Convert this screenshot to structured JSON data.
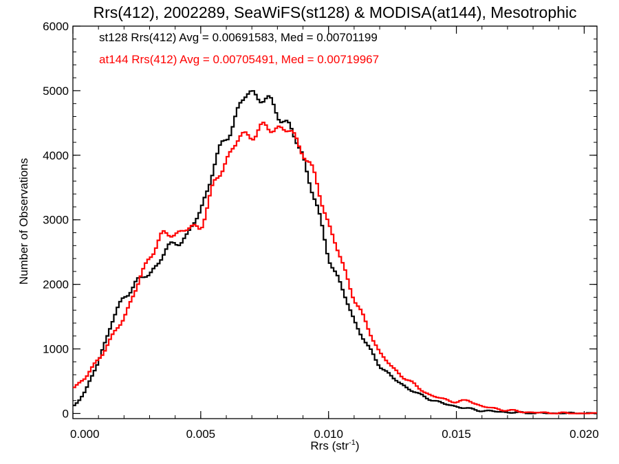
{
  "chart_data": {
    "type": "line",
    "style": "step histogram",
    "title": "Rrs(412), 2002289, SeaWiFS(st128) & MODISA(at144), Mesotrophic",
    "xlabel": "Rrs (str",
    "xlabel_superscript": "-1",
    "xlabel_suffix": ")",
    "ylabel": "Number of Observations",
    "xlim": [
      0.0,
      0.0205
    ],
    "ylim": [
      -80,
      6000
    ],
    "x_ticks": [
      {
        "value": 0.0,
        "label": "0.000"
      },
      {
        "value": 0.005,
        "label": "0.005"
      },
      {
        "value": 0.01,
        "label": "0.010"
      },
      {
        "value": 0.015,
        "label": "0.015"
      },
      {
        "value": 0.02,
        "label": "0.020"
      }
    ],
    "y_ticks": [
      {
        "value": 0,
        "label": "0"
      },
      {
        "value": 1000,
        "label": "1000"
      },
      {
        "value": 2000,
        "label": "2000"
      },
      {
        "value": 3000,
        "label": "3000"
      },
      {
        "value": 4000,
        "label": "4000"
      },
      {
        "value": 5000,
        "label": "5000"
      },
      {
        "value": 6000,
        "label": "6000"
      }
    ],
    "x_minor_step": 0.001,
    "y_minor_step": 200,
    "grid": false,
    "legend_position": "top-left",
    "series": [
      {
        "legend": "st128 Rrs(412) Avg = 0.00691583, Med = 0.00701199",
        "color": "#000000",
        "x": [
          0.0,
          0.0005,
          0.001,
          0.0015,
          0.002,
          0.0025,
          0.003,
          0.0035,
          0.004,
          0.0045,
          0.005,
          0.0055,
          0.006,
          0.0065,
          0.0068,
          0.007,
          0.0075,
          0.008,
          0.0085,
          0.009,
          0.0095,
          0.01,
          0.0105,
          0.011,
          0.0115,
          0.012,
          0.0125,
          0.013,
          0.0135,
          0.014,
          0.0145,
          0.015,
          0.0155,
          0.016,
          0.0165,
          0.017,
          0.0175,
          0.018,
          0.019,
          0.02
        ],
        "y": [
          100,
          350,
          800,
          1400,
          1800,
          2050,
          2150,
          2450,
          2650,
          2750,
          3150,
          3800,
          4300,
          4700,
          4950,
          5000,
          4850,
          4700,
          4400,
          4000,
          3250,
          2450,
          1950,
          1450,
          1050,
          750,
          550,
          420,
          300,
          220,
          150,
          110,
          70,
          45,
          30,
          20,
          10,
          5,
          2,
          0
        ]
      },
      {
        "legend": "at144 Rrs(412) Avg = 0.00705491, Med = 0.00719967",
        "color": "#ff0000",
        "x": [
          0.0,
          0.0005,
          0.001,
          0.0015,
          0.002,
          0.0025,
          0.003,
          0.0035,
          0.004,
          0.0045,
          0.005,
          0.0055,
          0.006,
          0.0065,
          0.007,
          0.0075,
          0.008,
          0.0085,
          0.009,
          0.0095,
          0.01,
          0.0105,
          0.011,
          0.0115,
          0.012,
          0.0125,
          0.013,
          0.0135,
          0.014,
          0.0145,
          0.015,
          0.0155,
          0.016,
          0.0165,
          0.017,
          0.0175,
          0.018,
          0.019,
          0.02
        ],
        "y": [
          400,
          550,
          850,
          1150,
          1500,
          1950,
          2450,
          2750,
          2800,
          2850,
          2900,
          3500,
          3950,
          4250,
          4350,
          4400,
          4450,
          4350,
          4100,
          3600,
          2950,
          2350,
          1800,
          1350,
          950,
          700,
          550,
          400,
          280,
          220,
          180,
          200,
          110,
          75,
          50,
          30,
          15,
          5,
          0
        ]
      }
    ]
  }
}
